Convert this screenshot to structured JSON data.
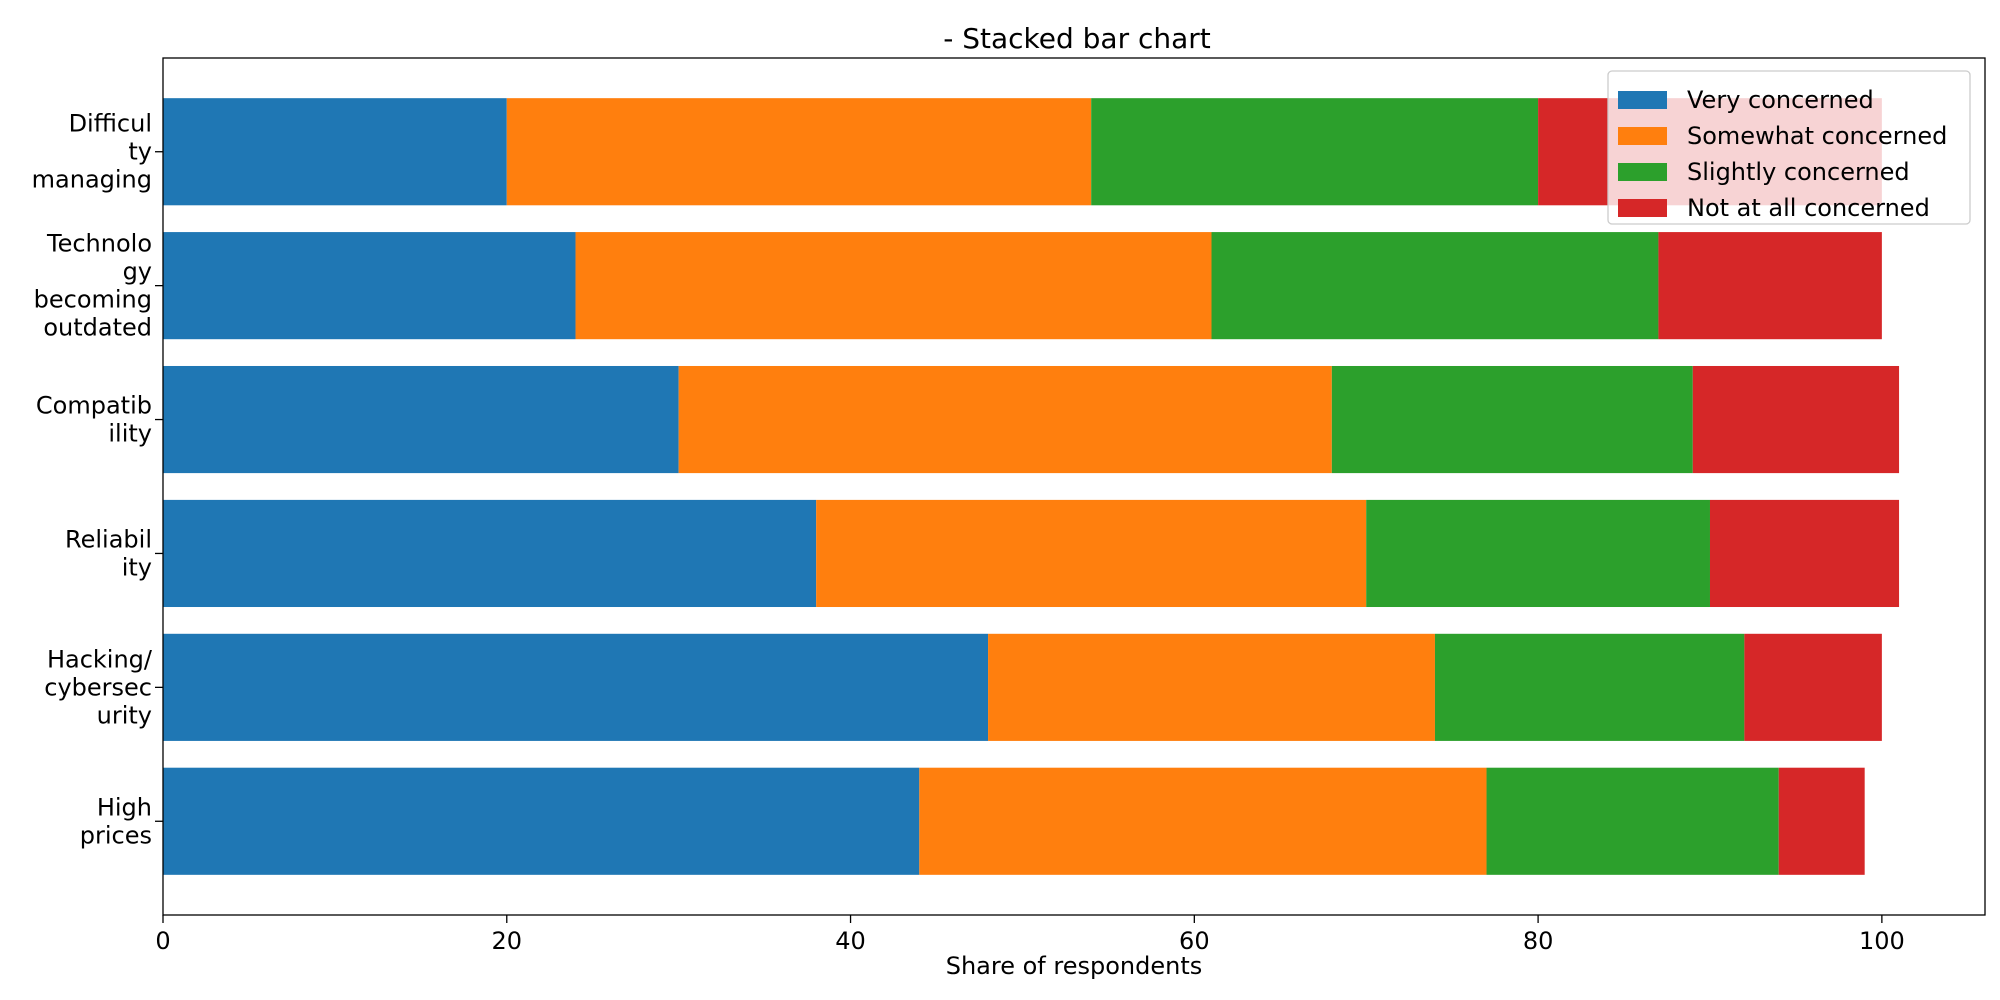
{
  "chart_data": {
    "type": "bar",
    "orientation": "horizontal",
    "stacked": true,
    "title": "- Stacked bar chart",
    "xlabel": "Share of respondents",
    "ylabel": "",
    "xlim": [
      0,
      106
    ],
    "xticks": [
      0,
      20,
      40,
      60,
      80,
      100
    ],
    "grid": false,
    "legend_position": "top-right",
    "categories": [
      [
        "Difficul",
        "ty",
        "managing"
      ],
      [
        "Technolo",
        "gy",
        "becoming",
        "outdated"
      ],
      [
        "Compatib",
        "ility"
      ],
      [
        "Reliabil",
        "ity"
      ],
      [
        "Hacking/",
        "cybersec",
        "urity"
      ],
      [
        "High",
        "prices"
      ]
    ],
    "series": [
      {
        "name": "Very concerned",
        "color": "#1f77b4",
        "values": [
          20,
          24,
          30,
          38,
          48,
          44
        ]
      },
      {
        "name": "Somewhat concerned",
        "color": "#ff7f0e",
        "values": [
          34,
          37,
          38,
          32,
          26,
          33
        ]
      },
      {
        "name": "Slightly concerned",
        "color": "#2ca02c",
        "values": [
          26,
          26,
          21,
          20,
          18,
          17
        ]
      },
      {
        "name": "Not at all concerned",
        "color": "#d62728",
        "values": [
          20,
          13,
          12,
          11,
          8,
          5
        ]
      }
    ]
  }
}
